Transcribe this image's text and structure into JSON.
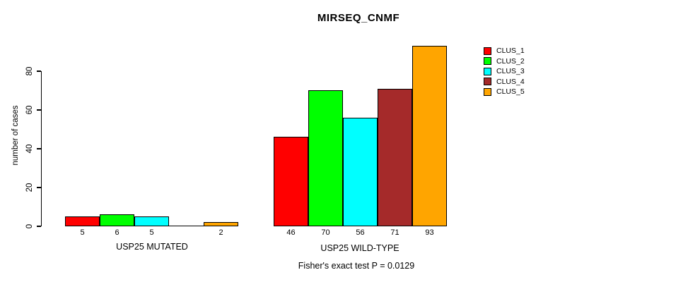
{
  "chart_data": {
    "type": "bar",
    "title": "MIRSEQ_CNMF",
    "ylabel": "number of cases",
    "xlabel": "",
    "yticks": [
      0,
      20,
      40,
      60,
      80
    ],
    "ylim": [
      0,
      95
    ],
    "grid": false,
    "legend_position": "right",
    "legend": [
      {
        "label": "CLUS_1",
        "color": "#FF0000"
      },
      {
        "label": "CLUS_2",
        "color": "#00FF00"
      },
      {
        "label": "CLUS_3",
        "color": "#00FFFF"
      },
      {
        "label": "CLUS_4",
        "color": "#A52A2A"
      },
      {
        "label": "CLUS_5",
        "color": "#FFA500"
      }
    ],
    "series_colors": [
      "#FF0000",
      "#00FF00",
      "#00FFFF",
      "#A52A2A",
      "#FFA500"
    ],
    "groups": [
      {
        "label": "USP25 MUTATED",
        "values": [
          5,
          6,
          5,
          0,
          2
        ],
        "value_labels": [
          "5",
          "6",
          "5",
          "",
          "2"
        ]
      },
      {
        "label": "USP25 WILD-TYPE",
        "values": [
          46,
          70,
          56,
          71,
          93
        ],
        "value_labels": [
          "46",
          "70",
          "56",
          "71",
          "93"
        ]
      }
    ],
    "annotation": "Fisher's exact test P = 0.0129"
  }
}
